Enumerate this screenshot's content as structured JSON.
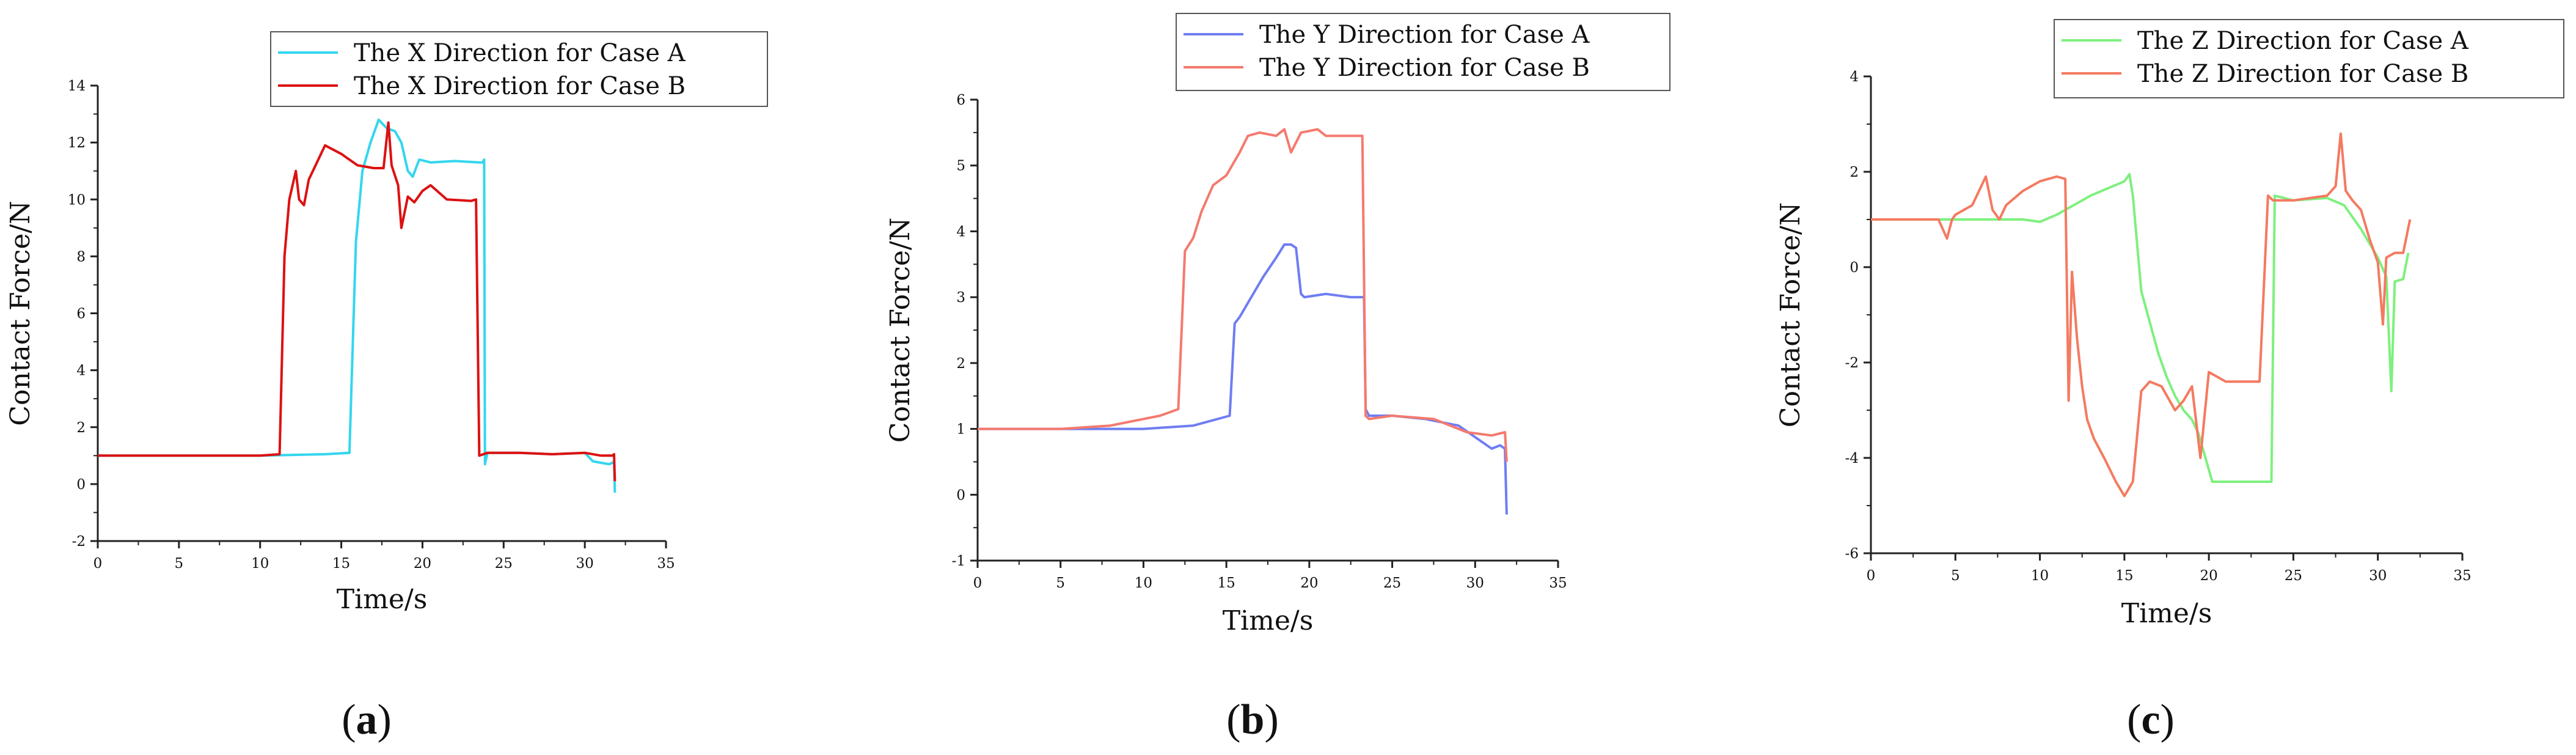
{
  "chart_data": [
    {
      "type": "line",
      "caption": "a",
      "xlabel": "Time/s",
      "ylabel": "Contact Force/N",
      "xlim": [
        0,
        35
      ],
      "ylim": [
        -2,
        14
      ],
      "xticks": [
        0,
        5,
        10,
        15,
        20,
        25,
        30,
        35
      ],
      "yticks": [
        -2,
        0,
        2,
        4,
        6,
        8,
        10,
        12,
        14
      ],
      "legend_position": "top-right",
      "series": [
        {
          "name": "The X Direction for Case A",
          "color": "#33d6ee",
          "x": [
            0,
            5,
            10,
            14,
            15.5,
            15.9,
            16.3,
            16.8,
            17.3,
            17.8,
            18.3,
            18.7,
            19.1,
            19.4,
            19.8,
            20.5,
            22,
            23.5,
            23.7,
            23.8,
            23.85,
            24,
            24.5,
            26,
            28,
            30,
            30.5,
            31,
            31.5,
            31.7,
            31.8,
            31.85
          ],
          "y": [
            1.0,
            1.0,
            1.0,
            1.05,
            1.1,
            8.5,
            11.0,
            12.0,
            12.8,
            12.5,
            12.4,
            12.0,
            11.0,
            10.8,
            11.4,
            11.3,
            11.35,
            11.3,
            11.3,
            11.4,
            0.7,
            1.1,
            1.1,
            1.1,
            1.05,
            1.1,
            0.8,
            0.75,
            0.7,
            0.75,
            0.8,
            -0.3
          ]
        },
        {
          "name": "The X Direction for Case B",
          "color": "#dd1111",
          "x": [
            0,
            5,
            10,
            11.2,
            11.5,
            11.8,
            12.2,
            12.4,
            12.7,
            13.0,
            14.0,
            15.0,
            16.0,
            17.0,
            17.6,
            17.9,
            18.1,
            18.5,
            18.7,
            19.1,
            19.5,
            20.0,
            20.5,
            21.5,
            23.0,
            23.3,
            23.5,
            24,
            26,
            28,
            30,
            31,
            31.7,
            31.8,
            31.85
          ],
          "y": [
            1.0,
            1.0,
            1.0,
            1.05,
            8.0,
            10.0,
            11.0,
            10.0,
            9.8,
            10.7,
            11.9,
            11.6,
            11.2,
            11.1,
            11.1,
            12.7,
            11.2,
            10.5,
            9.0,
            10.1,
            9.9,
            10.3,
            10.5,
            10.0,
            9.95,
            10.0,
            1.0,
            1.1,
            1.1,
            1.05,
            1.1,
            1.0,
            1.0,
            1.05,
            0.1
          ]
        }
      ]
    },
    {
      "type": "line",
      "caption": "b",
      "xlabel": "Time/s",
      "ylabel": "Contact Force/N",
      "xlim": [
        0,
        35
      ],
      "ylim": [
        -1,
        6
      ],
      "xticks": [
        0,
        5,
        10,
        15,
        20,
        25,
        30,
        35
      ],
      "yticks": [
        -1,
        0,
        1,
        2,
        3,
        4,
        5,
        6
      ],
      "legend_position": "top-right",
      "series": [
        {
          "name": "The Y Direction for Case A",
          "color": "#6f7df2",
          "x": [
            0,
            5,
            10,
            13,
            15.2,
            15.5,
            15.8,
            16.5,
            17.2,
            18.0,
            18.5,
            18.9,
            19.2,
            19.5,
            19.7,
            21,
            22.5,
            23.3,
            23.4,
            23.6,
            25,
            27,
            29,
            31,
            31.5,
            31.8,
            31.9
          ],
          "y": [
            1.0,
            1.0,
            1.0,
            1.05,
            1.2,
            2.6,
            2.7,
            3.0,
            3.3,
            3.6,
            3.8,
            3.8,
            3.75,
            3.05,
            3.0,
            3.05,
            3.0,
            3.0,
            1.3,
            1.2,
            1.2,
            1.15,
            1.05,
            0.7,
            0.75,
            0.7,
            -0.3
          ]
        },
        {
          "name": "The Y Direction for Case B",
          "color": "#f47a6e",
          "x": [
            0,
            5,
            8,
            11,
            12.1,
            12.3,
            12.5,
            13,
            13.5,
            14.2,
            15,
            15.8,
            16.3,
            17,
            18,
            18.5,
            18.9,
            19.5,
            20.5,
            21,
            22,
            23.2,
            23.4,
            23.6,
            25,
            27.5,
            28,
            29.5,
            31,
            31.8,
            31.9
          ],
          "y": [
            1.0,
            1.0,
            1.05,
            1.2,
            1.3,
            2.5,
            3.7,
            3.9,
            4.3,
            4.7,
            4.85,
            5.2,
            5.45,
            5.5,
            5.45,
            5.55,
            5.2,
            5.5,
            5.55,
            5.45,
            5.45,
            5.45,
            1.2,
            1.15,
            1.2,
            1.15,
            1.1,
            0.95,
            0.9,
            0.95,
            0.5
          ]
        }
      ]
    },
    {
      "type": "line",
      "caption": "c",
      "xlabel": "Time/s",
      "ylabel": "Contact Force/N",
      "xlim": [
        0,
        35
      ],
      "ylim": [
        -6,
        4
      ],
      "xticks": [
        0,
        5,
        10,
        15,
        20,
        25,
        30,
        35
      ],
      "yticks": [
        -6,
        -4,
        -2,
        0,
        2,
        4
      ],
      "legend_position": "top-right",
      "series": [
        {
          "name": "The Z Direction for Case A",
          "color": "#7ef07e",
          "x": [
            0,
            5,
            9,
            10,
            11,
            12,
            13,
            14,
            15,
            15.3,
            15.5,
            16,
            17,
            17.5,
            18,
            18.5,
            19,
            19.4,
            19.8,
            20.2,
            21,
            22,
            23,
            23.7,
            23.9,
            25,
            27,
            28,
            29,
            30,
            30.5,
            30.8,
            31,
            31.5,
            31.8
          ],
          "y": [
            1.0,
            1.0,
            1.0,
            0.95,
            1.1,
            1.3,
            1.5,
            1.65,
            1.8,
            1.95,
            1.5,
            -0.5,
            -1.8,
            -2.3,
            -2.7,
            -3.0,
            -3.2,
            -3.5,
            -4.0,
            -4.5,
            -4.5,
            -4.5,
            -4.5,
            -4.5,
            1.5,
            1.4,
            1.45,
            1.3,
            0.8,
            0.2,
            -0.2,
            -2.6,
            -0.3,
            -0.25,
            0.3
          ]
        },
        {
          "name": "The Z Direction for Case B",
          "color": "#f47a60",
          "x": [
            0,
            4,
            4.5,
            4.8,
            5,
            6,
            6.8,
            7.2,
            7.6,
            8,
            9,
            10,
            11,
            11.5,
            11.7,
            11.9,
            12.2,
            12.5,
            12.8,
            13.2,
            13.8,
            14.5,
            15,
            15.5,
            16,
            16.5,
            17.2,
            18,
            18.5,
            19,
            19.5,
            20,
            21,
            22,
            23,
            23.5,
            23.8,
            25,
            26,
            27,
            27.5,
            27.8,
            28.1,
            28.5,
            29,
            29.5,
            30,
            30.3,
            30.5,
            31,
            31.5,
            31.9
          ],
          "y": [
            1.0,
            1.0,
            0.6,
            1.0,
            1.1,
            1.3,
            1.9,
            1.2,
            1.0,
            1.3,
            1.6,
            1.8,
            1.9,
            1.85,
            -2.8,
            -0.1,
            -1.5,
            -2.5,
            -3.2,
            -3.6,
            -4.0,
            -4.5,
            -4.8,
            -4.5,
            -2.6,
            -2.4,
            -2.5,
            -3.0,
            -2.8,
            -2.5,
            -4.0,
            -2.2,
            -2.4,
            -2.4,
            -2.4,
            1.5,
            1.4,
            1.4,
            1.45,
            1.5,
            1.7,
            2.8,
            1.6,
            1.4,
            1.2,
            0.6,
            0.1,
            -1.2,
            0.2,
            0.3,
            0.3,
            1.0
          ]
        }
      ]
    }
  ]
}
